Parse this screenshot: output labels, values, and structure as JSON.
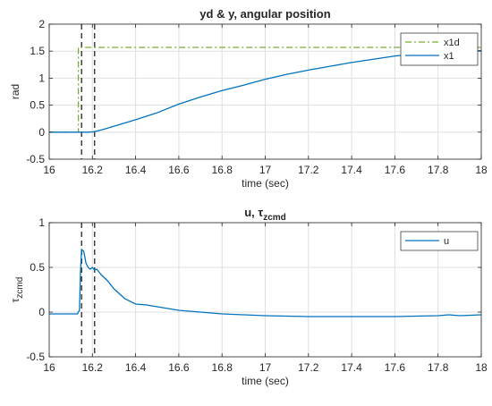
{
  "chart_data": [
    {
      "type": "line",
      "title": "yd & y, angular position",
      "xlabel": "time (sec)",
      "ylabel": "rad",
      "xlim": [
        16,
        18
      ],
      "ylim": [
        -0.5,
        2
      ],
      "xticks": [
        16,
        16.2,
        16.4,
        16.6,
        16.8,
        17,
        17.2,
        17.4,
        17.6,
        17.8,
        18
      ],
      "xtick_labels": [
        "16",
        "16.2",
        "16.4",
        "16.6",
        "16.8",
        "17",
        "17.2",
        "17.4",
        "17.6",
        "17.8",
        "18"
      ],
      "yticks": [
        -0.5,
        0,
        0.5,
        1,
        1.5,
        2
      ],
      "ytick_labels": [
        "-0.5",
        "0",
        "0.5",
        "1",
        "1.5",
        "2"
      ],
      "grid": true,
      "legend_position": "top-right",
      "vlines": [
        16.15,
        16.21
      ],
      "series": [
        {
          "name": "x1d",
          "color": "#77ac30",
          "style": "dash-dot",
          "x": [
            16,
            16.135,
            16.135,
            18
          ],
          "y": [
            0,
            0,
            1.57,
            1.57
          ]
        },
        {
          "name": "x1",
          "color": "#0072bd",
          "style": "solid",
          "x": [
            16,
            16.1,
            16.18,
            16.2,
            16.22,
            16.25,
            16.3,
            16.35,
            16.4,
            16.5,
            16.6,
            16.7,
            16.8,
            16.9,
            17,
            17.1,
            17.2,
            17.3,
            17.4,
            17.5,
            17.6,
            17.7,
            17.8,
            17.9,
            18
          ],
          "y": [
            0,
            0,
            0,
            0.005,
            0.02,
            0.05,
            0.11,
            0.17,
            0.23,
            0.36,
            0.52,
            0.65,
            0.77,
            0.87,
            0.98,
            1.07,
            1.15,
            1.22,
            1.29,
            1.35,
            1.41,
            1.45,
            1.48,
            1.5,
            1.51
          ]
        }
      ]
    },
    {
      "type": "line",
      "title": "u, τ",
      "title_subscript": "zcmd",
      "xlabel": "time (sec)",
      "ylabel": "τ",
      "ylabel_subscript": "zcmd",
      "xlim": [
        16,
        18
      ],
      "ylim": [
        -0.5,
        1
      ],
      "xticks": [
        16,
        16.2,
        16.4,
        16.6,
        16.8,
        17,
        17.2,
        17.4,
        17.6,
        17.8,
        18
      ],
      "xtick_labels": [
        "16",
        "16.2",
        "16.4",
        "16.6",
        "16.8",
        "17",
        "17.2",
        "17.4",
        "17.6",
        "17.8",
        "18"
      ],
      "yticks": [
        -0.5,
        0,
        0.5,
        1
      ],
      "ytick_labels": [
        "-0.5",
        "0",
        "0.5",
        "1"
      ],
      "grid": true,
      "legend_position": "top-right",
      "vlines": [
        16.15,
        16.21
      ],
      "series": [
        {
          "name": "u",
          "color": "#0072bd",
          "style": "solid",
          "x": [
            16,
            16.13,
            16.14,
            16.145,
            16.15,
            16.16,
            16.17,
            16.18,
            16.19,
            16.2,
            16.21,
            16.22,
            16.24,
            16.27,
            16.3,
            16.35,
            16.4,
            16.45,
            16.5,
            16.55,
            16.6,
            16.7,
            16.8,
            16.9,
            17,
            17.2,
            17.4,
            17.6,
            17.8,
            17.85,
            17.9,
            18
          ],
          "y": [
            -0.02,
            -0.02,
            0.02,
            0.45,
            0.7,
            0.68,
            0.55,
            0.5,
            0.48,
            0.5,
            0.47,
            0.48,
            0.42,
            0.35,
            0.26,
            0.15,
            0.09,
            0.08,
            0.06,
            0.04,
            0.02,
            0.0,
            -0.02,
            -0.03,
            -0.04,
            -0.05,
            -0.05,
            -0.05,
            -0.04,
            -0.03,
            -0.04,
            -0.03
          ]
        }
      ]
    }
  ]
}
